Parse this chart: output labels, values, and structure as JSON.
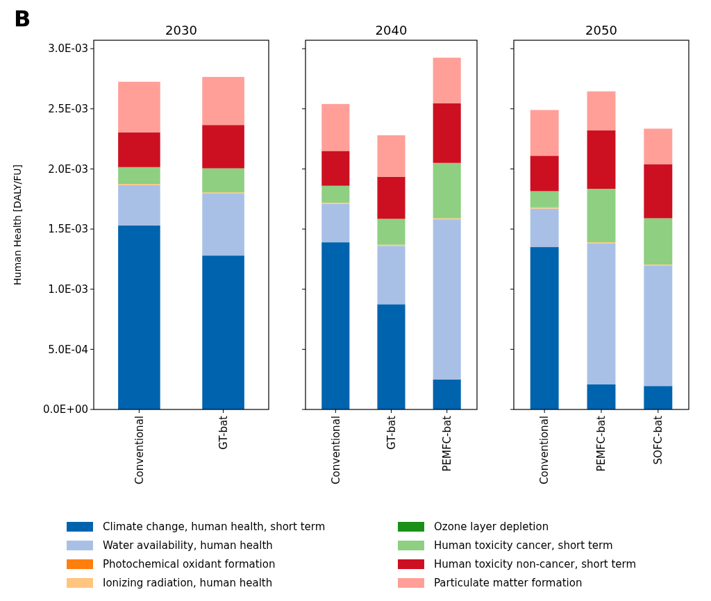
{
  "chart_data": [
    {
      "type": "bar",
      "title": "2030",
      "ylabel": "Human Health [DALY/FU]",
      "stacked": true,
      "annotations": [
        "B"
      ],
      "legend": "bottom",
      "categories": [
        "Conventional",
        "GT-bat"
      ],
      "ylim": [
        0,
        0.00307
      ],
      "yticks": [
        {
          "value": 0,
          "label": "0.0E+00"
        },
        {
          "value": 0.0005,
          "label": "5.0E-04"
        },
        {
          "value": 0.001,
          "label": "1.0E-03"
        },
        {
          "value": 0.0015,
          "label": "1.5E-03"
        },
        {
          "value": 0.002,
          "label": "2.0E-03"
        },
        {
          "value": 0.0025,
          "label": "2.5E-03"
        },
        {
          "value": 0.003,
          "label": "3.0E-03"
        }
      ],
      "series": [
        {
          "name": "Climate change, human health, short term",
          "color": "#0063ae",
          "values": [
            0.00153,
            0.00128
          ]
        },
        {
          "name": "Water availability, human health",
          "color": "#a9c0e6",
          "values": [
            0.000335,
            0.000515
          ]
        },
        {
          "name": "Photochemical oxidant formation",
          "color": "#ff7f0e",
          "values": [
            0,
            0
          ]
        },
        {
          "name": "Ionizing radiation, human health",
          "color": "#ffc57e",
          "values": [
            1e-05,
            1e-05
          ]
        },
        {
          "name": "Ozone layer depletion",
          "color": "#1a8f1a",
          "values": [
            0,
            0
          ]
        },
        {
          "name": "Human toxicity cancer, short term",
          "color": "#8ecf82",
          "values": [
            0.00014,
            0.0002
          ]
        },
        {
          "name": "Human toxicity non-cancer, short term",
          "color": "#cc1021",
          "values": [
            0.00029,
            0.00036
          ]
        },
        {
          "name": "Particulate matter formation",
          "color": "#ff9f98",
          "values": [
            0.00042,
            0.0004
          ]
        }
      ]
    },
    {
      "type": "bar",
      "title": "2040",
      "stacked": true,
      "tick_labels": "x",
      "categories": [
        "Conventional",
        "GT-bat",
        "PEMFC-bat"
      ],
      "ylim": [
        0,
        0.00307
      ],
      "yticks": [
        {
          "value": 0,
          "label": null
        },
        {
          "value": 0.0005,
          "label": null
        },
        {
          "value": 0.001,
          "label": null
        },
        {
          "value": 0.0015,
          "label": null
        },
        {
          "value": 0.002,
          "label": null
        },
        {
          "value": 0.0025,
          "label": null
        },
        {
          "value": 0.003,
          "label": null
        }
      ],
      "series": [
        {
          "color": "#0063ae",
          "values": [
            0.00139,
            0.000875,
            0.00025
          ]
        },
        {
          "color": "#a9c0e6",
          "values": [
            0.00032,
            0.000485,
            0.00133
          ]
        },
        {
          "color": "#ff7f0e",
          "values": [
            0,
            0,
            0
          ]
        },
        {
          "color": "#ffc57e",
          "values": [
            1e-05,
            1e-05,
            1e-05
          ]
        },
        {
          "color": "#1a8f1a",
          "values": [
            0,
            0,
            0
          ]
        },
        {
          "color": "#8ecf82",
          "values": [
            0.00014,
            0.000215,
            0.00046
          ]
        },
        {
          "color": "#cc1021",
          "values": [
            0.00029,
            0.00035,
            0.000495
          ]
        },
        {
          "color": "#ff9f98",
          "values": [
            0.00039,
            0.000345,
            0.00038
          ]
        }
      ]
    },
    {
      "type": "bar",
      "title": "2050",
      "stacked": true,
      "tick_labels": "x",
      "categories": [
        "Conventional",
        "PEMFC-bat",
        "SOFC-bat"
      ],
      "ylim": [
        0,
        0.00307
      ],
      "yticks": [
        {
          "value": 0,
          "label": null
        },
        {
          "value": 0.0005,
          "label": null
        },
        {
          "value": 0.001,
          "label": null
        },
        {
          "value": 0.0015,
          "label": null
        },
        {
          "value": 0.002,
          "label": null
        },
        {
          "value": 0.0025,
          "label": null
        },
        {
          "value": 0.003,
          "label": null
        }
      ],
      "series": [
        {
          "color": "#0063ae",
          "values": [
            0.00135,
            0.00021,
            0.000195
          ]
        },
        {
          "color": "#a9c0e6",
          "values": [
            0.00032,
            0.00117,
            0.001
          ]
        },
        {
          "color": "#ff7f0e",
          "values": [
            0,
            0,
            0
          ]
        },
        {
          "color": "#ffc57e",
          "values": [
            1e-05,
            1e-05,
            1e-05
          ]
        },
        {
          "color": "#1a8f1a",
          "values": [
            0,
            0,
            0
          ]
        },
        {
          "color": "#8ecf82",
          "values": [
            0.000135,
            0.000445,
            0.000385
          ]
        },
        {
          "color": "#cc1021",
          "values": [
            0.000295,
            0.000485,
            0.00045
          ]
        },
        {
          "color": "#ff9f98",
          "values": [
            0.00038,
            0.000325,
            0.000295
          ]
        }
      ]
    }
  ]
}
